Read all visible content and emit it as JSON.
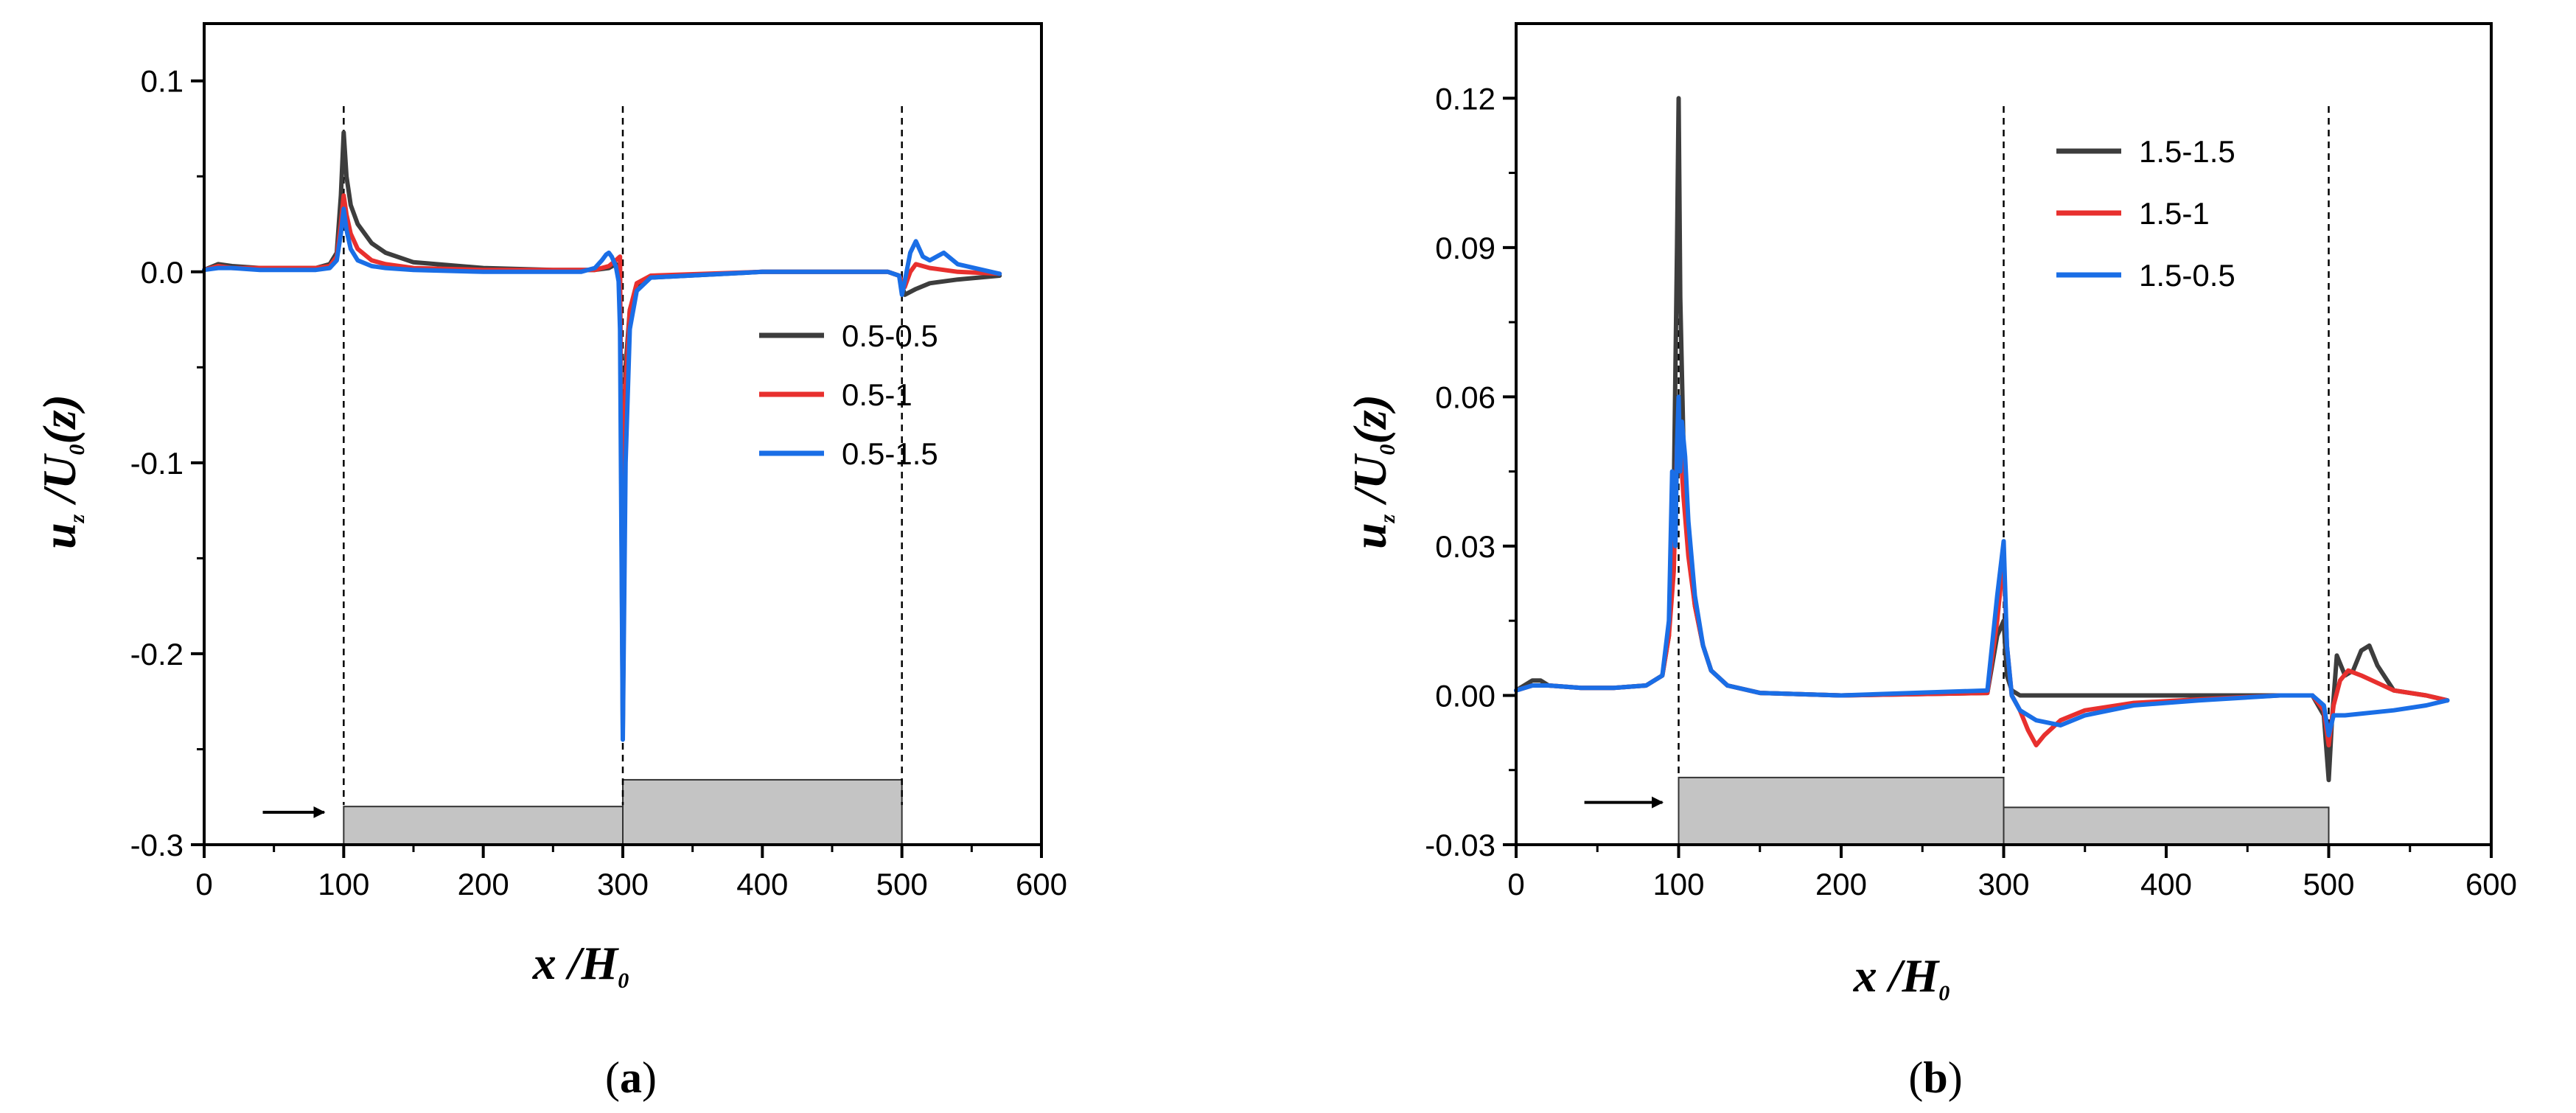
{
  "chart_data": [
    {
      "type": "line",
      "caption": {
        "open": "(",
        "letter": "a",
        "close": ")"
      },
      "xlabel": {
        "main": "x",
        "sep": " /",
        "sym": "H",
        "sub": "0"
      },
      "ylabel": {
        "main": "u",
        "sub1": "z",
        "sep": " /",
        "sym": "U",
        "sub2": "0",
        "tail": "(z)"
      },
      "xlim": [
        0,
        600
      ],
      "ylim": [
        -0.3,
        0.13
      ],
      "x_ticks": [
        0,
        100,
        200,
        300,
        400,
        500,
        600
      ],
      "x_tick_labels": [
        "0",
        "100",
        "200",
        "300",
        "400",
        "500",
        "600"
      ],
      "y_ticks": [
        0.1,
        0.0,
        -0.1,
        -0.2,
        -0.3
      ],
      "y_tick_labels": [
        "0.1",
        "0.0",
        "-0.1",
        "-0.2",
        "-0.3"
      ],
      "grid": false,
      "legend_position": "middle-right",
      "vlines": [
        100,
        300,
        500
      ],
      "steps": [
        {
          "x0": 100,
          "x1": 300,
          "ybottom": -0.3,
          "ytop": -0.28
        },
        {
          "x0": 300,
          "x1": 500,
          "ybottom": -0.3,
          "ytop": -0.266
        }
      ],
      "arrow": {
        "x0": 42,
        "x1": 86,
        "y": -0.283
      },
      "series": [
        {
          "name": "0.5-0.5",
          "color": "#3d3d3d",
          "x": [
            0,
            10,
            20,
            40,
            60,
            80,
            90,
            95,
            98,
            100,
            102,
            105,
            110,
            120,
            130,
            150,
            200,
            250,
            280,
            290,
            295,
            298,
            300,
            302,
            305,
            310,
            320,
            400,
            490,
            498,
            502,
            510,
            520,
            540,
            570
          ],
          "y": [
            0.001,
            0.004,
            0.003,
            0.002,
            0.002,
            0.002,
            0.004,
            0.01,
            0.04,
            0.073,
            0.05,
            0.035,
            0.025,
            0.015,
            0.01,
            0.005,
            0.002,
            0.001,
            0.001,
            0.002,
            0.004,
            0.003,
            -0.24,
            -0.05,
            -0.02,
            -0.008,
            -0.003,
            0.0,
            0.0,
            -0.002,
            -0.012,
            -0.009,
            -0.006,
            -0.004,
            -0.002
          ]
        },
        {
          "name": "0.5-1",
          "color": "#e8302e",
          "x": [
            0,
            10,
            20,
            40,
            60,
            80,
            90,
            95,
            98,
            100,
            102,
            105,
            110,
            120,
            130,
            150,
            200,
            250,
            280,
            290,
            295,
            298,
            300,
            302,
            305,
            310,
            320,
            400,
            490,
            498,
            502,
            506,
            510,
            520,
            540,
            570
          ],
          "y": [
            0.001,
            0.003,
            0.002,
            0.002,
            0.002,
            0.002,
            0.003,
            0.008,
            0.025,
            0.04,
            0.03,
            0.02,
            0.012,
            0.006,
            0.004,
            0.002,
            0.001,
            0.001,
            0.001,
            0.003,
            0.006,
            0.008,
            -0.21,
            -0.06,
            -0.02,
            -0.006,
            -0.002,
            0.0,
            0.0,
            -0.002,
            -0.008,
            0.0,
            0.004,
            0.002,
            0.0,
            -0.001
          ]
        },
        {
          "name": "0.5-1.5",
          "color": "#1a6ee6",
          "x": [
            0,
            10,
            20,
            40,
            60,
            80,
            90,
            95,
            98,
            100,
            102,
            105,
            110,
            120,
            130,
            150,
            200,
            250,
            270,
            280,
            285,
            288,
            290,
            292,
            295,
            297,
            298,
            300,
            302,
            305,
            310,
            320,
            400,
            490,
            498,
            500,
            502,
            506,
            510,
            515,
            520,
            530,
            540,
            570
          ],
          "y": [
            0.001,
            0.002,
            0.002,
            0.001,
            0.001,
            0.001,
            0.002,
            0.006,
            0.02,
            0.033,
            0.022,
            0.012,
            0.006,
            0.003,
            0.002,
            0.001,
            0.0,
            0.0,
            0.0,
            0.002,
            0.006,
            0.009,
            0.01,
            0.008,
            0.003,
            -0.005,
            -0.03,
            -0.245,
            -0.1,
            -0.03,
            -0.01,
            -0.003,
            0.0,
            0.0,
            -0.002,
            -0.012,
            -0.005,
            0.01,
            0.016,
            0.008,
            0.006,
            0.01,
            0.004,
            -0.001
          ]
        }
      ]
    },
    {
      "type": "line",
      "caption": {
        "open": "(",
        "letter": "b",
        "close": ")"
      },
      "xlabel": {
        "main": "x",
        "sep": " /",
        "sym": "H",
        "sub": "0"
      },
      "ylabel": {
        "main": "u",
        "sub1": "z",
        "sep": " /",
        "sym": "U",
        "sub2": "0",
        "tail": "(z)"
      },
      "xlim": [
        0,
        600
      ],
      "ylim": [
        -0.03,
        0.135
      ],
      "x_ticks": [
        0,
        100,
        200,
        300,
        400,
        500,
        600
      ],
      "x_tick_labels": [
        "0",
        "100",
        "200",
        "300",
        "400",
        "500",
        "600"
      ],
      "y_ticks": [
        0.12,
        0.09,
        0.06,
        0.03,
        0.0,
        -0.03
      ],
      "y_tick_labels": [
        "0.12",
        "0.09",
        "0.06",
        "0.03",
        "0.00",
        "-0.03"
      ],
      "grid": false,
      "legend_position": "top-right",
      "vlines": [
        100,
        300,
        500
      ],
      "steps": [
        {
          "x0": 100,
          "x1": 300,
          "ybottom": -0.03,
          "ytop": -0.0165
        },
        {
          "x0": 300,
          "x1": 500,
          "ybottom": -0.03,
          "ytop": -0.0225
        }
      ],
      "arrow": {
        "x0": 42,
        "x1": 90,
        "y": -0.0215
      },
      "series": [
        {
          "name": "1.5-1.5",
          "color": "#3d3d3d",
          "x": [
            0,
            10,
            15,
            20,
            40,
            60,
            80,
            90,
            94,
            97,
            99,
            100,
            101,
            103,
            106,
            110,
            115,
            120,
            130,
            150,
            200,
            290,
            296,
            300,
            302,
            305,
            310,
            320,
            400,
            490,
            497,
            500,
            502,
            505,
            510,
            515,
            520,
            525,
            530,
            540,
            560,
            573
          ],
          "y": [
            0.001,
            0.003,
            0.003,
            0.002,
            0.0015,
            0.0015,
            0.002,
            0.004,
            0.012,
            0.04,
            0.09,
            0.12,
            0.08,
            0.05,
            0.03,
            0.018,
            0.01,
            0.005,
            0.002,
            0.0005,
            0.0,
            0.0005,
            0.012,
            0.015,
            0.004,
            0.001,
            0.0,
            0.0,
            0.0,
            0.0,
            -0.004,
            -0.017,
            -0.005,
            0.008,
            0.004,
            0.005,
            0.009,
            0.01,
            0.006,
            0.001,
            0.0,
            -0.001
          ]
        },
        {
          "name": "1.5-1",
          "color": "#e8302e",
          "x": [
            0,
            10,
            20,
            40,
            60,
            80,
            90,
            94,
            97,
            99,
            100,
            101,
            103,
            106,
            110,
            115,
            120,
            130,
            150,
            200,
            290,
            296,
            300,
            302,
            305,
            310,
            315,
            320,
            325,
            335,
            350,
            380,
            420,
            470,
            490,
            497,
            500,
            503,
            507,
            512,
            520,
            540,
            560,
            573
          ],
          "y": [
            0.001,
            0.002,
            0.002,
            0.0015,
            0.0015,
            0.002,
            0.004,
            0.012,
            0.025,
            0.05,
            0.055,
            0.05,
            0.04,
            0.028,
            0.018,
            0.01,
            0.005,
            0.002,
            0.0005,
            0.0,
            0.0005,
            0.015,
            0.028,
            0.01,
            0.0,
            -0.003,
            -0.007,
            -0.01,
            -0.008,
            -0.005,
            -0.003,
            -0.0015,
            -0.0008,
            0.0,
            0.0,
            -0.003,
            -0.01,
            -0.002,
            0.003,
            0.005,
            0.004,
            0.001,
            0.0,
            -0.001
          ]
        },
        {
          "name": "1.5-0.5",
          "color": "#1a6ee6",
          "x": [
            0,
            10,
            20,
            40,
            60,
            80,
            90,
            94,
            96,
            98,
            99,
            100,
            101,
            102,
            104,
            106,
            110,
            115,
            120,
            130,
            150,
            200,
            290,
            296,
            300,
            302,
            305,
            310,
            320,
            335,
            350,
            380,
            420,
            470,
            490,
            497,
            500,
            503,
            510,
            540,
            560,
            573
          ],
          "y": [
            0.001,
            0.002,
            0.002,
            0.0015,
            0.0015,
            0.002,
            0.004,
            0.015,
            0.045,
            0.03,
            0.05,
            0.06,
            0.045,
            0.055,
            0.048,
            0.035,
            0.02,
            0.01,
            0.005,
            0.002,
            0.0005,
            0.0,
            0.001,
            0.02,
            0.031,
            0.01,
            0.0,
            -0.003,
            -0.005,
            -0.006,
            -0.004,
            -0.002,
            -0.001,
            0.0,
            0.0,
            -0.002,
            -0.008,
            -0.004,
            -0.004,
            -0.003,
            -0.002,
            -0.001
          ]
        }
      ]
    }
  ]
}
